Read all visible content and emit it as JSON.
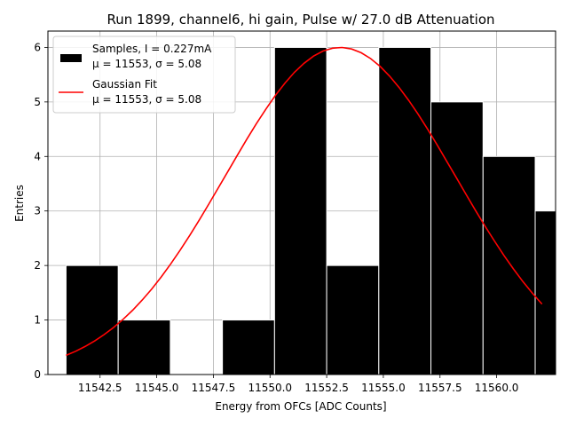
{
  "chart_data": {
    "type": "bar",
    "title": "Run 1899, channel6, hi gain, Pulse w/ 27.0 dB Attenuation",
    "xlabel": "Energy from OFCs [ADC Counts]",
    "ylabel": "Entries",
    "xlim": [
      11540.2,
      11562.6
    ],
    "ylim": [
      0,
      6.3
    ],
    "grid": true,
    "legend_placement": "top-left",
    "x_ticks": [
      "11542.5",
      "11545.0",
      "11547.5",
      "11550.0",
      "11552.5",
      "11555.0",
      "11557.5",
      "11560.0"
    ],
    "y_ticks": [
      "0",
      "1",
      "2",
      "3",
      "4",
      "5",
      "6"
    ],
    "histogram": {
      "name": "Samples, I = 0.227mA",
      "stats": "μ = 11553, σ = 5.08",
      "color": "#000000",
      "bins": [
        {
          "x0": 11541.0,
          "x1": 11543.3,
          "count": 2
        },
        {
          "x0": 11543.3,
          "x1": 11545.6,
          "count": 1
        },
        {
          "x0": 11545.6,
          "x1": 11547.9,
          "count": 0
        },
        {
          "x0": 11547.9,
          "x1": 11550.2,
          "count": 1
        },
        {
          "x0": 11550.2,
          "x1": 11552.5,
          "count": 6
        },
        {
          "x0": 11552.5,
          "x1": 11554.8,
          "count": 2
        },
        {
          "x0": 11554.8,
          "x1": 11557.1,
          "count": 6
        },
        {
          "x0": 11557.1,
          "x1": 11559.4,
          "count": 5
        },
        {
          "x0": 11559.4,
          "x1": 11561.7,
          "count": 4
        },
        {
          "x0": 11561.7,
          "x1": 11564.0,
          "count": 3
        }
      ]
    },
    "fit": {
      "name": "Gaussian Fit",
      "stats": "μ = 11553, σ = 5.08",
      "color": "#ff0000",
      "mu": 11553.1,
      "sigma": 5.08,
      "amplitude": 6.0,
      "x_range": [
        11541.0,
        11562.0
      ]
    }
  }
}
